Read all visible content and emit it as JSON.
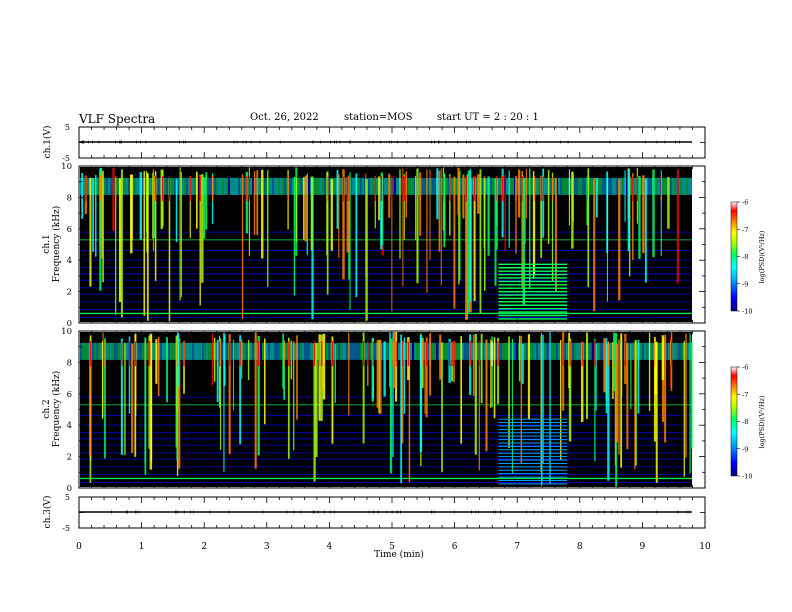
{
  "header": {
    "title": "VLF Spectra",
    "date": "Oct. 26, 2022",
    "station": "station=MOS",
    "start": "start  UT =   2 : 20 : 1"
  },
  "chart_data": [
    {
      "name": "ch1-waveform",
      "type": "line",
      "ylabel": "ch.1(V)",
      "ylim": [
        -5,
        5
      ],
      "yticks": [
        "5",
        "-5"
      ],
      "xlim": [
        0,
        10
      ],
      "series": [
        {
          "values_description_free": true,
          "x": [
            0,
            9.85
          ],
          "y": [
            0,
            0
          ]
        }
      ]
    },
    {
      "name": "ch1-spectrogram",
      "type": "heatmap",
      "ylabel": [
        "ch.1",
        "Frequency (kHz)"
      ],
      "ylim": [
        0,
        10
      ],
      "yticks": [
        "0",
        "2",
        "4",
        "6",
        "8",
        "10"
      ],
      "xlim": [
        0,
        10
      ],
      "colorbar": {
        "label": "log(PSD)(V²/Hz)",
        "range": [
          -10,
          -6
        ],
        "ticks": [
          "-6",
          "-7",
          "-8",
          "-9",
          "-10"
        ]
      }
    },
    {
      "name": "ch2-spectrogram",
      "type": "heatmap",
      "ylabel": [
        "ch.2",
        "Frequency (kHz)"
      ],
      "ylim": [
        0,
        10
      ],
      "yticks": [
        "0",
        "2",
        "4",
        "6",
        "8",
        "10"
      ],
      "xlim": [
        0,
        10
      ],
      "colorbar": {
        "label": "log(PSD)(V²/Hz)",
        "range": [
          -10,
          -6
        ],
        "ticks": [
          "-6",
          "-7",
          "-8",
          "-9",
          "-10"
        ]
      }
    },
    {
      "name": "ch3-waveform",
      "type": "line",
      "ylabel": "ch.3(V)",
      "ylim": [
        -5,
        5
      ],
      "yticks": [
        "5",
        "-5"
      ],
      "xlabel": "Time (min)",
      "xlim": [
        0,
        10
      ],
      "xticks": [
        "0",
        "1",
        "2",
        "3",
        "4",
        "5",
        "6",
        "7",
        "8",
        "9",
        "10"
      ],
      "series": [
        {
          "x": [
            0,
            9.85
          ],
          "y": [
            0,
            0
          ]
        }
      ]
    }
  ],
  "colors": {
    "background": "#000000",
    "colormap": [
      "#000080",
      "#0000ff",
      "#00a0ff",
      "#00ffff",
      "#00ff60",
      "#a0ff00",
      "#ffff00",
      "#ff8000",
      "#ff0000",
      "#ffffff"
    ]
  }
}
